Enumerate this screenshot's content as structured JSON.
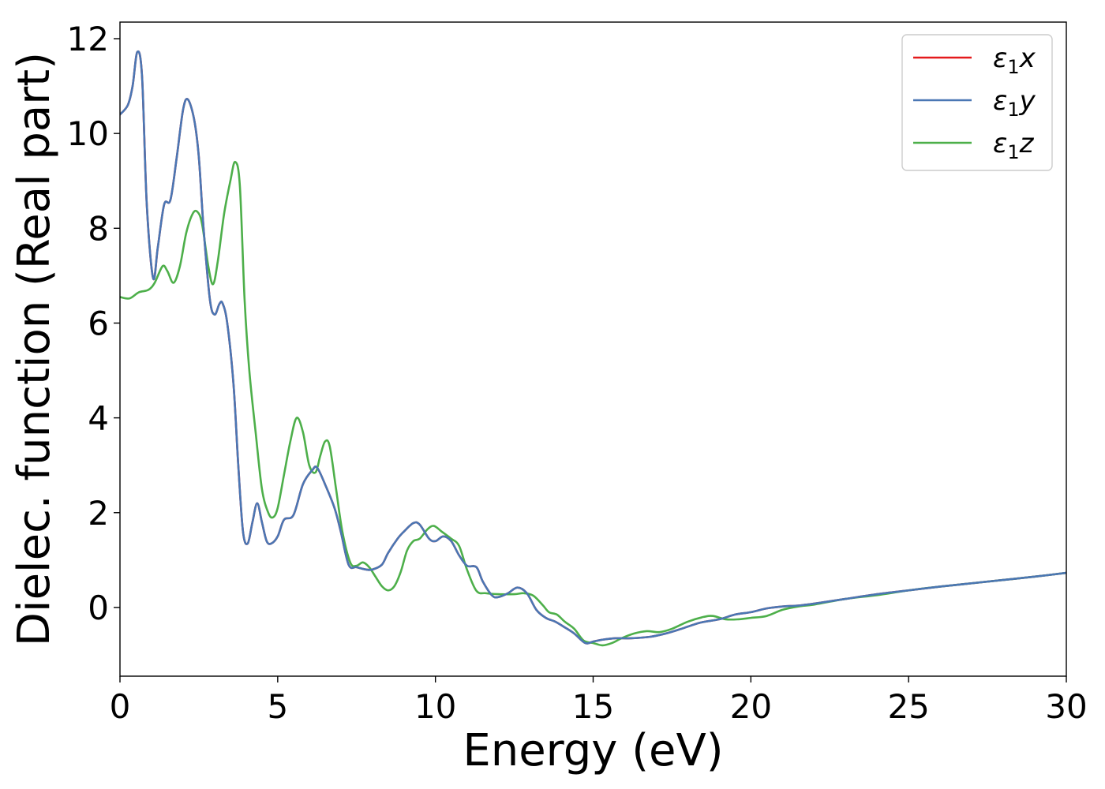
{
  "chart_data": {
    "type": "line",
    "title": "",
    "xlabel": "Energy (eV)",
    "ylabel": "Dielec. function (Real part)",
    "xlim": [
      0,
      30
    ],
    "ylim": [
      -1.45,
      12.35
    ],
    "x_ticks": [
      0,
      5,
      10,
      15,
      20,
      25,
      30
    ],
    "y_ticks": [
      0,
      2,
      4,
      6,
      8,
      10,
      12
    ],
    "grid": false,
    "legend_position": "top-right",
    "series": [
      {
        "name": "ε₁x",
        "legend_base": "ε",
        "legend_sub": "1",
        "legend_var": "x",
        "color": "#e41a1c",
        "points": [
          [
            0,
            10.4
          ],
          [
            0.25,
            10.6
          ],
          [
            0.4,
            11.0
          ],
          [
            0.55,
            11.72
          ],
          [
            0.7,
            11.2
          ],
          [
            0.85,
            8.5
          ],
          [
            1.05,
            6.95
          ],
          [
            1.2,
            7.6
          ],
          [
            1.4,
            8.5
          ],
          [
            1.6,
            8.6
          ],
          [
            1.8,
            9.5
          ],
          [
            2.0,
            10.5
          ],
          [
            2.15,
            10.72
          ],
          [
            2.35,
            10.3
          ],
          [
            2.5,
            9.5
          ],
          [
            2.65,
            8.0
          ],
          [
            2.85,
            6.5
          ],
          [
            3.0,
            6.18
          ],
          [
            3.15,
            6.4
          ],
          [
            3.25,
            6.42
          ],
          [
            3.4,
            6.0
          ],
          [
            3.6,
            4.7
          ],
          [
            3.75,
            3.0
          ],
          [
            3.9,
            1.6
          ],
          [
            4.05,
            1.35
          ],
          [
            4.2,
            1.8
          ],
          [
            4.35,
            2.2
          ],
          [
            4.5,
            1.8
          ],
          [
            4.65,
            1.4
          ],
          [
            4.8,
            1.35
          ],
          [
            5.0,
            1.5
          ],
          [
            5.2,
            1.85
          ],
          [
            5.5,
            1.95
          ],
          [
            5.8,
            2.6
          ],
          [
            6.1,
            2.9
          ],
          [
            6.25,
            2.95
          ],
          [
            6.5,
            2.6
          ],
          [
            6.8,
            2.1
          ],
          [
            7.0,
            1.6
          ],
          [
            7.25,
            0.9
          ],
          [
            7.5,
            0.85
          ],
          [
            7.8,
            0.8
          ],
          [
            8.0,
            0.8
          ],
          [
            8.3,
            0.9
          ],
          [
            8.5,
            1.15
          ],
          [
            8.8,
            1.45
          ],
          [
            9.0,
            1.6
          ],
          [
            9.3,
            1.78
          ],
          [
            9.5,
            1.75
          ],
          [
            9.8,
            1.45
          ],
          [
            10.0,
            1.4
          ],
          [
            10.25,
            1.5
          ],
          [
            10.5,
            1.4
          ],
          [
            10.75,
            1.1
          ],
          [
            11.0,
            0.88
          ],
          [
            11.3,
            0.85
          ],
          [
            11.5,
            0.55
          ],
          [
            11.8,
            0.25
          ],
          [
            12.0,
            0.22
          ],
          [
            12.3,
            0.3
          ],
          [
            12.6,
            0.42
          ],
          [
            12.9,
            0.3
          ],
          [
            13.2,
            -0.05
          ],
          [
            13.5,
            -0.22
          ],
          [
            13.8,
            -0.3
          ],
          [
            14.1,
            -0.42
          ],
          [
            14.4,
            -0.55
          ],
          [
            14.75,
            -0.75
          ],
          [
            15.0,
            -0.72
          ],
          [
            15.3,
            -0.68
          ],
          [
            15.7,
            -0.65
          ],
          [
            16.2,
            -0.65
          ],
          [
            16.8,
            -0.62
          ],
          [
            17.3,
            -0.55
          ],
          [
            17.8,
            -0.45
          ],
          [
            18.4,
            -0.32
          ],
          [
            19.0,
            -0.25
          ],
          [
            19.5,
            -0.15
          ],
          [
            20.0,
            -0.1
          ],
          [
            20.5,
            -0.02
          ],
          [
            21.0,
            0.02
          ],
          [
            21.5,
            0.04
          ],
          [
            22.0,
            0.08
          ],
          [
            23.0,
            0.18
          ],
          [
            24.0,
            0.28
          ],
          [
            25.0,
            0.36
          ],
          [
            26.0,
            0.44
          ],
          [
            27.0,
            0.51
          ],
          [
            28.0,
            0.58
          ],
          [
            29.0,
            0.65
          ],
          [
            30.0,
            0.73
          ]
        ]
      },
      {
        "name": "ε₁y",
        "legend_base": "ε",
        "legend_sub": "1",
        "legend_var": "y",
        "color": "#4a77b4",
        "points": [
          [
            0,
            10.4
          ],
          [
            0.25,
            10.6
          ],
          [
            0.4,
            11.0
          ],
          [
            0.55,
            11.72
          ],
          [
            0.7,
            11.2
          ],
          [
            0.85,
            8.5
          ],
          [
            1.05,
            6.95
          ],
          [
            1.2,
            7.6
          ],
          [
            1.4,
            8.5
          ],
          [
            1.6,
            8.6
          ],
          [
            1.8,
            9.5
          ],
          [
            2.0,
            10.5
          ],
          [
            2.15,
            10.72
          ],
          [
            2.35,
            10.3
          ],
          [
            2.5,
            9.5
          ],
          [
            2.65,
            8.0
          ],
          [
            2.85,
            6.5
          ],
          [
            3.0,
            6.18
          ],
          [
            3.15,
            6.4
          ],
          [
            3.25,
            6.42
          ],
          [
            3.4,
            6.0
          ],
          [
            3.6,
            4.7
          ],
          [
            3.75,
            3.0
          ],
          [
            3.9,
            1.6
          ],
          [
            4.05,
            1.35
          ],
          [
            4.2,
            1.8
          ],
          [
            4.35,
            2.2
          ],
          [
            4.5,
            1.8
          ],
          [
            4.65,
            1.4
          ],
          [
            4.8,
            1.35
          ],
          [
            5.0,
            1.5
          ],
          [
            5.2,
            1.85
          ],
          [
            5.5,
            1.95
          ],
          [
            5.8,
            2.6
          ],
          [
            6.1,
            2.9
          ],
          [
            6.25,
            2.95
          ],
          [
            6.5,
            2.6
          ],
          [
            6.8,
            2.1
          ],
          [
            7.0,
            1.6
          ],
          [
            7.25,
            0.9
          ],
          [
            7.5,
            0.85
          ],
          [
            7.8,
            0.8
          ],
          [
            8.0,
            0.8
          ],
          [
            8.3,
            0.9
          ],
          [
            8.5,
            1.15
          ],
          [
            8.8,
            1.45
          ],
          [
            9.0,
            1.6
          ],
          [
            9.3,
            1.78
          ],
          [
            9.5,
            1.75
          ],
          [
            9.8,
            1.45
          ],
          [
            10.0,
            1.4
          ],
          [
            10.25,
            1.5
          ],
          [
            10.5,
            1.4
          ],
          [
            10.75,
            1.1
          ],
          [
            11.0,
            0.88
          ],
          [
            11.3,
            0.85
          ],
          [
            11.5,
            0.55
          ],
          [
            11.8,
            0.25
          ],
          [
            12.0,
            0.22
          ],
          [
            12.3,
            0.3
          ],
          [
            12.6,
            0.42
          ],
          [
            12.9,
            0.3
          ],
          [
            13.2,
            -0.05
          ],
          [
            13.5,
            -0.22
          ],
          [
            13.8,
            -0.3
          ],
          [
            14.1,
            -0.42
          ],
          [
            14.4,
            -0.55
          ],
          [
            14.75,
            -0.75
          ],
          [
            15.0,
            -0.72
          ],
          [
            15.3,
            -0.68
          ],
          [
            15.7,
            -0.65
          ],
          [
            16.2,
            -0.65
          ],
          [
            16.8,
            -0.62
          ],
          [
            17.3,
            -0.55
          ],
          [
            17.8,
            -0.45
          ],
          [
            18.4,
            -0.32
          ],
          [
            19.0,
            -0.25
          ],
          [
            19.5,
            -0.15
          ],
          [
            20.0,
            -0.1
          ],
          [
            20.5,
            -0.02
          ],
          [
            21.0,
            0.02
          ],
          [
            21.5,
            0.04
          ],
          [
            22.0,
            0.08
          ],
          [
            23.0,
            0.18
          ],
          [
            24.0,
            0.28
          ],
          [
            25.0,
            0.36
          ],
          [
            26.0,
            0.44
          ],
          [
            27.0,
            0.51
          ],
          [
            28.0,
            0.58
          ],
          [
            29.0,
            0.65
          ],
          [
            30.0,
            0.73
          ]
        ]
      },
      {
        "name": "ε₁z",
        "legend_base": "ε",
        "legend_sub": "1",
        "legend_var": "z",
        "color": "#4daf4a",
        "points": [
          [
            0,
            6.55
          ],
          [
            0.3,
            6.52
          ],
          [
            0.6,
            6.65
          ],
          [
            0.9,
            6.7
          ],
          [
            1.1,
            6.85
          ],
          [
            1.35,
            7.2
          ],
          [
            1.5,
            7.1
          ],
          [
            1.7,
            6.85
          ],
          [
            1.9,
            7.2
          ],
          [
            2.1,
            7.9
          ],
          [
            2.3,
            8.3
          ],
          [
            2.45,
            8.35
          ],
          [
            2.6,
            8.1
          ],
          [
            2.8,
            7.2
          ],
          [
            2.95,
            6.82
          ],
          [
            3.1,
            7.3
          ],
          [
            3.3,
            8.3
          ],
          [
            3.5,
            9.0
          ],
          [
            3.65,
            9.4
          ],
          [
            3.8,
            8.9
          ],
          [
            3.95,
            6.5
          ],
          [
            4.1,
            5.0
          ],
          [
            4.3,
            3.7
          ],
          [
            4.5,
            2.5
          ],
          [
            4.7,
            2.0
          ],
          [
            4.85,
            1.9
          ],
          [
            5.0,
            2.1
          ],
          [
            5.2,
            2.8
          ],
          [
            5.4,
            3.5
          ],
          [
            5.6,
            4.0
          ],
          [
            5.8,
            3.7
          ],
          [
            6.0,
            3.0
          ],
          [
            6.2,
            2.85
          ],
          [
            6.35,
            3.2
          ],
          [
            6.5,
            3.5
          ],
          [
            6.65,
            3.4
          ],
          [
            6.85,
            2.5
          ],
          [
            7.05,
            1.6
          ],
          [
            7.3,
            0.95
          ],
          [
            7.5,
            0.88
          ],
          [
            7.7,
            0.95
          ],
          [
            7.9,
            0.85
          ],
          [
            8.1,
            0.65
          ],
          [
            8.3,
            0.45
          ],
          [
            8.5,
            0.36
          ],
          [
            8.7,
            0.45
          ],
          [
            8.9,
            0.75
          ],
          [
            9.1,
            1.2
          ],
          [
            9.3,
            1.4
          ],
          [
            9.5,
            1.45
          ],
          [
            9.75,
            1.65
          ],
          [
            9.95,
            1.72
          ],
          [
            10.2,
            1.6
          ],
          [
            10.5,
            1.45
          ],
          [
            10.75,
            1.3
          ],
          [
            11.0,
            0.8
          ],
          [
            11.3,
            0.35
          ],
          [
            11.6,
            0.3
          ],
          [
            12.0,
            0.28
          ],
          [
            12.5,
            0.28
          ],
          [
            12.8,
            0.3
          ],
          [
            13.1,
            0.25
          ],
          [
            13.4,
            0.05
          ],
          [
            13.6,
            -0.1
          ],
          [
            13.85,
            -0.15
          ],
          [
            14.1,
            -0.3
          ],
          [
            14.4,
            -0.45
          ],
          [
            14.7,
            -0.7
          ],
          [
            15.0,
            -0.75
          ],
          [
            15.3,
            -0.8
          ],
          [
            15.6,
            -0.75
          ],
          [
            15.9,
            -0.65
          ],
          [
            16.3,
            -0.55
          ],
          [
            16.7,
            -0.5
          ],
          [
            17.1,
            -0.52
          ],
          [
            17.5,
            -0.45
          ],
          [
            18.0,
            -0.3
          ],
          [
            18.5,
            -0.2
          ],
          [
            18.8,
            -0.18
          ],
          [
            19.2,
            -0.25
          ],
          [
            19.6,
            -0.25
          ],
          [
            20.0,
            -0.22
          ],
          [
            20.5,
            -0.18
          ],
          [
            21.0,
            -0.05
          ],
          [
            21.5,
            0.02
          ],
          [
            22.0,
            0.06
          ],
          [
            23.0,
            0.18
          ],
          [
            24.0,
            0.26
          ],
          [
            25.0,
            0.36
          ],
          [
            26.0,
            0.44
          ],
          [
            27.0,
            0.51
          ],
          [
            28.0,
            0.58
          ],
          [
            29.0,
            0.65
          ],
          [
            30.0,
            0.73
          ]
        ]
      }
    ]
  }
}
